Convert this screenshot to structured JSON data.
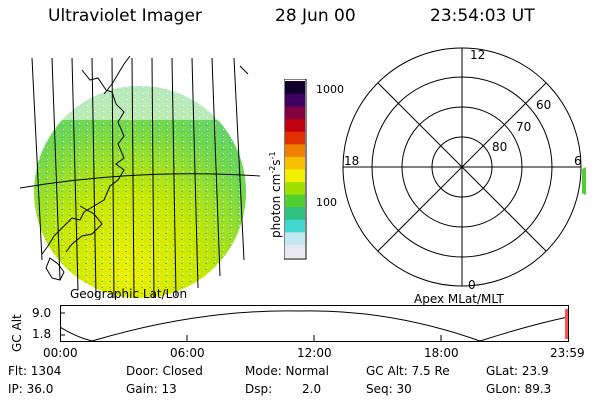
{
  "header": {
    "instrument": "Ultraviolet Imager",
    "date": "28 Jun 00",
    "time": "23:54:03 UT"
  },
  "image_panel": {
    "label": "Geographic Lat/Lon"
  },
  "colorbar": {
    "unit_label": "photon cm",
    "unit_sup1": "-2",
    "unit_mid": "s",
    "unit_sup2": "-1",
    "tick_high": "1000",
    "tick_low": "100",
    "colors": [
      "#e8e8f0",
      "#bfe8f0",
      "#40d8d0",
      "#30c080",
      "#50d030",
      "#a0e000",
      "#f0f000",
      "#f8c000",
      "#f08000",
      "#e03000",
      "#c00010",
      "#800040",
      "#400060",
      "#100030"
    ]
  },
  "polar_panel": {
    "label": "Apex MLat/MLT",
    "mlt_top": "12",
    "mlt_left": "18",
    "mlt_right": "6",
    "mlt_bottom": "0",
    "lat_60": "60",
    "lat_70": "70",
    "lat_80": "80"
  },
  "altitude_plot": {
    "ylabel": "GC Alt",
    "ytick_high": "9.0",
    "ytick_low": "1.8",
    "xticks": [
      "00:00",
      "06:00",
      "12:00",
      "18:00",
      "23:59"
    ]
  },
  "info": {
    "flt": "Flt: 1304",
    "door": "Door: Closed",
    "mode": "Mode: Normal",
    "gc_alt": "GC Alt: 7.5 Re",
    "glat": "GLat: 23.9",
    "ip": "IP: 36.0",
    "gain": "Gain: 13",
    "dsp_label": "Dsp:",
    "dsp_value": "2.0",
    "seq": "Seq: 30",
    "glon": "GLon: 89.3"
  }
}
